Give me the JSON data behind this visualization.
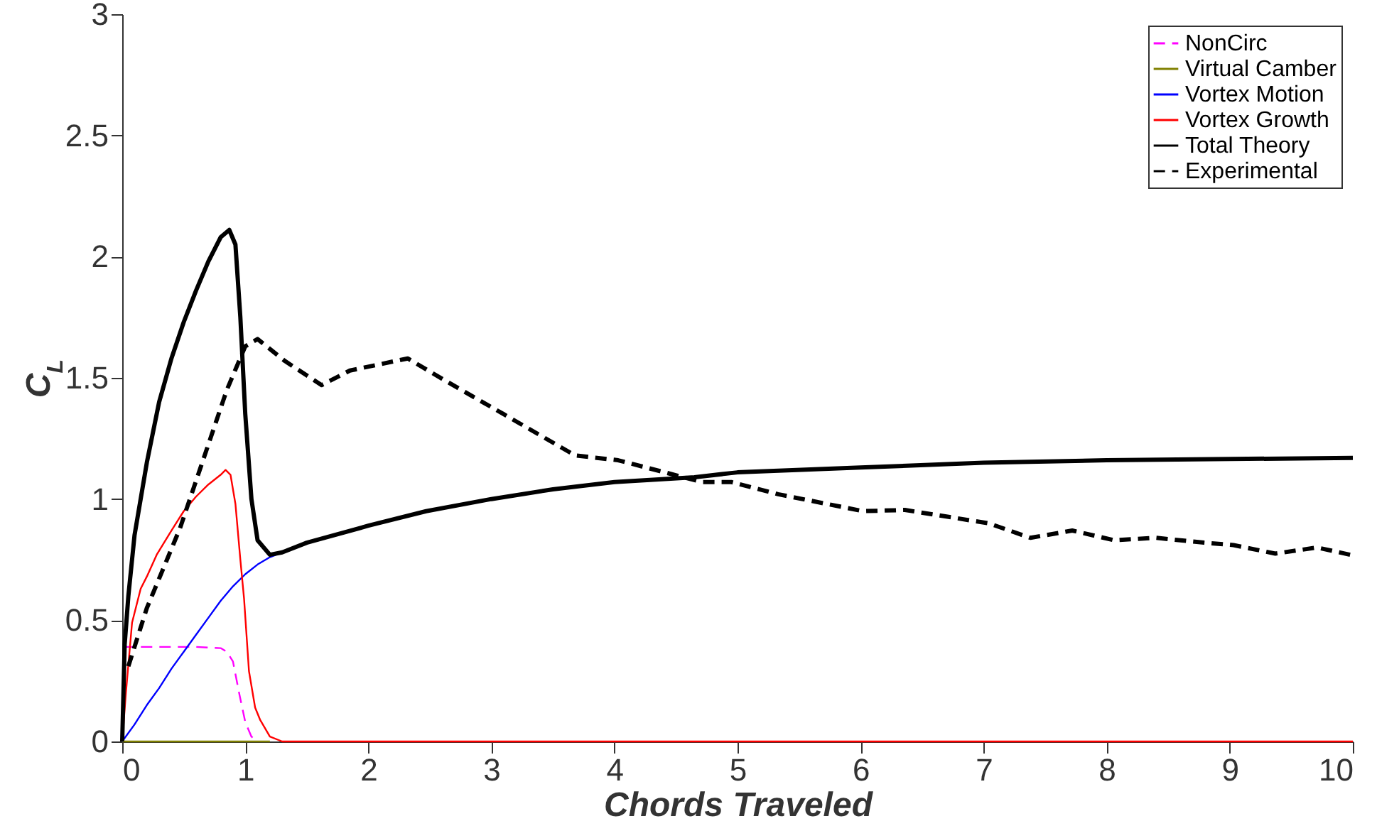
{
  "chart_data": {
    "type": "line",
    "xlabel": "Chords Traveled",
    "ylabel": "C$_{L}$",
    "xlim": [
      0,
      10
    ],
    "ylim": [
      0,
      3
    ],
    "xticks": [
      0,
      1,
      2,
      3,
      4,
      5,
      6,
      7,
      8,
      9,
      10
    ],
    "yticks": [
      0,
      {
        "value": 0.5,
        "label": "0.5"
      },
      1,
      {
        "value": 1.5,
        "label": "1.5"
      },
      2,
      {
        "value": 2.5,
        "label": "2.5"
      },
      3
    ],
    "grid": false,
    "legend": "top right",
    "series": [
      {
        "name": "NonCirc",
        "color": "#ff00ff",
        "line_style": "dashed",
        "x": [
          0,
          0.02,
          0.05,
          0.2,
          0.4,
          0.6,
          0.8,
          0.85,
          0.9,
          0.95,
          1.0,
          1.05,
          1.1
        ],
        "values": [
          0,
          0.39,
          0.39,
          0.39,
          0.39,
          0.39,
          0.385,
          0.37,
          0.33,
          0.2,
          0.08,
          0.02,
          0
        ]
      },
      {
        "name": "Virtual Camber",
        "color": "#808000",
        "line_style": "solid",
        "x": [
          0,
          0.5,
          1.0,
          1.2
        ],
        "values": [
          0,
          0,
          0,
          0
        ]
      },
      {
        "name": "Vortex Motion",
        "color": "#0000ff",
        "line_style": "solid",
        "x": [
          0,
          0.1,
          0.2,
          0.3,
          0.4,
          0.5,
          0.6,
          0.7,
          0.8,
          0.9,
          1.0,
          1.1,
          1.2,
          1.25
        ],
        "values": [
          0,
          0.07,
          0.15,
          0.22,
          0.3,
          0.37,
          0.44,
          0.51,
          0.58,
          0.64,
          0.69,
          0.73,
          0.76,
          0.77
        ]
      },
      {
        "name": "Vortex Growth",
        "color": "#ff0000",
        "line_style": "solid",
        "x": [
          0,
          0.03,
          0.08,
          0.15,
          0.2,
          0.28,
          0.4,
          0.5,
          0.6,
          0.7,
          0.8,
          0.84,
          0.88,
          0.92,
          0.96,
          0.99,
          1.03,
          1.08,
          1.12,
          1.2,
          1.3,
          2,
          4,
          6,
          8,
          10
        ],
        "values": [
          0,
          0.2,
          0.49,
          0.63,
          0.68,
          0.77,
          0.87,
          0.95,
          1.01,
          1.06,
          1.1,
          1.12,
          1.1,
          0.98,
          0.75,
          0.59,
          0.29,
          0.14,
          0.09,
          0.02,
          0,
          0,
          0,
          0,
          0,
          0
        ]
      },
      {
        "name": "Total Theory",
        "color": "#000000",
        "line_style": "solid",
        "x": [
          0,
          0.02,
          0.05,
          0.1,
          0.2,
          0.3,
          0.4,
          0.5,
          0.6,
          0.7,
          0.8,
          0.87,
          0.92,
          0.96,
          1.0,
          1.05,
          1.1,
          1.2,
          1.3,
          1.5,
          2,
          2.47,
          3,
          3.5,
          4,
          4.65,
          5,
          6,
          7,
          8,
          9,
          10
        ],
        "values": [
          0,
          0.4,
          0.6,
          0.85,
          1.15,
          1.4,
          1.58,
          1.73,
          1.86,
          1.98,
          2.08,
          2.11,
          2.05,
          1.75,
          1.35,
          1.0,
          0.83,
          0.77,
          0.78,
          0.82,
          0.89,
          0.95,
          1.0,
          1.04,
          1.07,
          1.09,
          1.11,
          1.13,
          1.15,
          1.16,
          1.165,
          1.17
        ]
      },
      {
        "name": "Experimental",
        "color": "#000000",
        "line_style": "dashed",
        "x": [
          0.05,
          0.2,
          0.47,
          0.85,
          1.0,
          1.1,
          1.32,
          1.62,
          1.85,
          2.32,
          2.62,
          3.1,
          3.68,
          4.03,
          4.41,
          4.71,
          4.95,
          5.33,
          6.02,
          6.36,
          7.04,
          7.38,
          7.72,
          8.06,
          8.4,
          8.79,
          9.03,
          9.37,
          9.71,
          9.98
        ],
        "values": [
          0.31,
          0.55,
          0.88,
          1.45,
          1.63,
          1.66,
          1.57,
          1.47,
          1.53,
          1.58,
          1.49,
          1.35,
          1.18,
          1.16,
          1.11,
          1.07,
          1.07,
          1.02,
          0.95,
          0.955,
          0.9,
          0.84,
          0.87,
          0.83,
          0.84,
          0.82,
          0.81,
          0.775,
          0.8,
          0.77
        ]
      }
    ]
  }
}
